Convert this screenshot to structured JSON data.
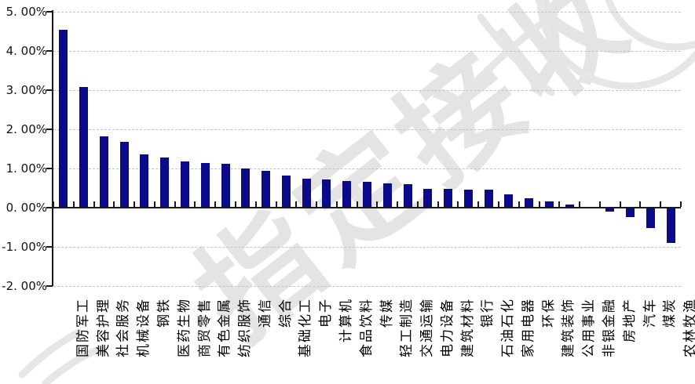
{
  "chart_data": {
    "type": "bar",
    "title": "",
    "xlabel": "",
    "ylabel": "",
    "categories": [
      "国防军工",
      "美容护理",
      "社会服务",
      "机械设备",
      "钢铁",
      "医药生物",
      "商贸零售",
      "有色金属",
      "纺织服饰",
      "通信",
      "综合",
      "基础化工",
      "电子",
      "计算机",
      "食品饮料",
      "传媒",
      "轻工制造",
      "交通运输",
      "电力设备",
      "建筑材料",
      "银行",
      "石油石化",
      "家用电器",
      "环保",
      "建筑装饰",
      "公用事业",
      "非银金融",
      "房地产",
      "汽车",
      "煤炭",
      "农林牧渔"
    ],
    "values": [
      4.54,
      3.08,
      1.82,
      1.68,
      1.36,
      1.28,
      1.18,
      1.15,
      1.13,
      1.01,
      0.95,
      0.82,
      0.74,
      0.72,
      0.68,
      0.66,
      0.63,
      0.61,
      0.48,
      0.48,
      0.47,
      0.46,
      0.34,
      0.25,
      0.16,
      0.08,
      0.03,
      -0.07,
      -0.22,
      -0.5,
      -0.88
    ],
    "value_unit": "%",
    "ylim": [
      -2,
      5
    ],
    "ytick_step": 1,
    "ytick_labels": [
      "5. 00%",
      "4. 00%",
      "3. 00%",
      "2. 00%",
      "1. 00%",
      "0. 00%",
      "-1. 00%",
      "-2. 00%"
    ],
    "grid": "horizontal-dashed",
    "legend_position": "none",
    "bar_color": "#0a0a8a",
    "axis_color": "#1a1a1a",
    "gridline_color": "#c3c3c3",
    "label_color": "#000000"
  },
  "watermark": {
    "text": "指定接收",
    "color": "#e4e4e4"
  }
}
